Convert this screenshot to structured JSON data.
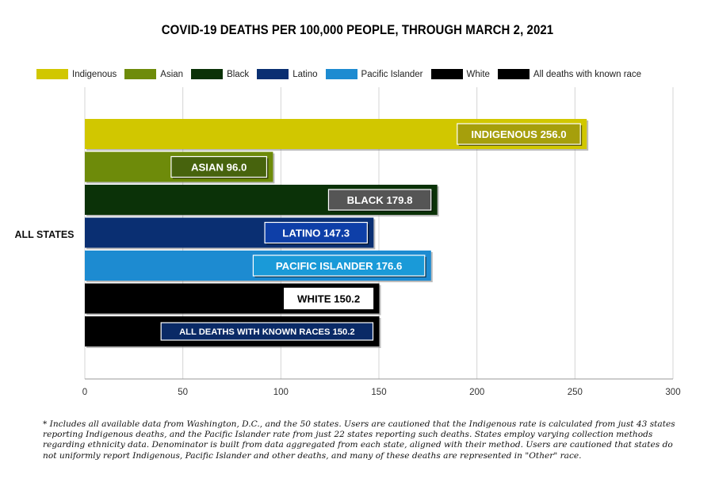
{
  "chart_data": {
    "type": "bar",
    "orientation": "horizontal",
    "title": "COVID-19 DEATHS PER 100,000 PEOPLE, THROUGH MARCH 2, 2021",
    "categories": [
      "ALL STATES"
    ],
    "series": [
      {
        "name": "Indigenous",
        "values": [
          256.0
        ],
        "color": "#d1c700",
        "data_label": "INDIGENOUS 256.0",
        "label_bg": "#a69f0c",
        "label_text_color": "#ffffff"
      },
      {
        "name": "Asian",
        "values": [
          96.0
        ],
        "color": "#6e8b0a",
        "data_label": "ASIAN   96.0",
        "label_bg": "#47630d",
        "label_text_color": "#ffffff"
      },
      {
        "name": "Black",
        "values": [
          179.8
        ],
        "color": "#0b3208",
        "data_label": "BLACK   179.8",
        "label_bg": "#555555",
        "label_text_color": "#ffffff"
      },
      {
        "name": "Latino",
        "values": [
          147.3
        ],
        "color": "#0a2f72",
        "data_label": "LATINO  147.3",
        "label_bg": "#0e3fa8",
        "label_text_color": "#ffffff"
      },
      {
        "name": "Pacific Islander",
        "values": [
          176.6
        ],
        "color": "#1d8bd1",
        "data_label": "PACIFIC ISLANDER  176.6",
        "label_bg": "#1a9ad8",
        "label_text_color": "#ffffff"
      },
      {
        "name": "White",
        "values": [
          150.2
        ],
        "color": "#000000",
        "data_label": "WHITE 150.2",
        "label_bg": "#ffffff",
        "label_text_color": "#000000"
      },
      {
        "name": "All deaths with known race",
        "values": [
          150.2
        ],
        "color": "#000000",
        "data_label": "ALL DEATHS WITH KNOWN RACES  150.2",
        "label_bg": "#0a2a66",
        "label_text_color": "#ffffff"
      }
    ],
    "xlim": [
      0,
      300
    ],
    "xticks": [
      "0",
      "50",
      "100",
      "150",
      "200",
      "250",
      "300"
    ],
    "grid": true,
    "legend_position": "top"
  },
  "footnote": "* Includes all available data from Washington, D.C., and the 50 states. Users are cautioned that the Indigenous rate is calculated from just 43 states reporting Indigenous deaths, and the Pacific Islander rate from just 22 states reporting such deaths. States employ varying collection methods regarding ethnicity data. Denominator is built from data aggregated from each state, aligned with their method. Users are cautioned that states do not uniformly report Indigenous, Pacific Islander and other deaths, and many of these deaths are represented in \"Other\" race."
}
